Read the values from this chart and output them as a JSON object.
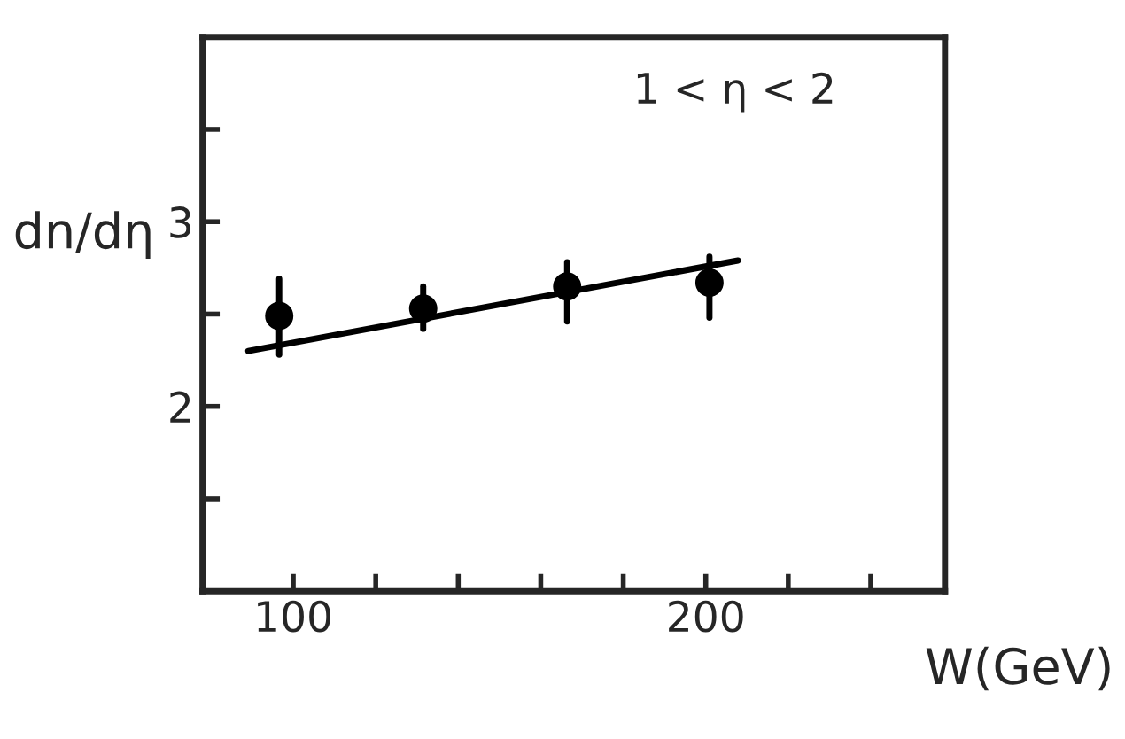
{
  "chart_data": {
    "type": "scatter",
    "xlabel": "W(GeV)",
    "ylabel": "dn/dη",
    "annotations": [
      "1 < η < 2"
    ],
    "series": [
      {
        "color": "#000000",
        "marker": "circle",
        "x": [
          96.6,
          131.5,
          166.4,
          200.9
        ],
        "values": [
          2.49,
          2.53,
          2.65,
          2.67
        ],
        "errors": [
          [
            2.28,
            2.69
          ],
          [
            2.42,
            2.65
          ],
          [
            2.46,
            2.78
          ],
          [
            2.48,
            2.81
          ]
        ]
      },
      {
        "type": "line",
        "color": "#000000",
        "line_style": "solid",
        "x": [
          89.1,
          207.8
        ],
        "values": [
          2.3,
          2.79
        ]
      }
    ],
    "xlim": [
      78,
      258
    ],
    "ylim": [
      1,
      4
    ],
    "xticks": [
      100,
      {
        "value": 120,
        "label": null
      },
      {
        "value": 140,
        "label": null
      },
      {
        "value": 160,
        "label": null
      },
      {
        "value": 180,
        "label": null
      },
      200,
      {
        "value": 220,
        "label": null
      },
      {
        "value": 240,
        "label": null
      }
    ],
    "yticks": [
      {
        "value": 1.5,
        "label": null
      },
      2,
      {
        "value": 2.5,
        "label": null
      },
      3,
      {
        "value": 3.5,
        "label": null
      }
    ],
    "grid": false,
    "legend": false
  }
}
